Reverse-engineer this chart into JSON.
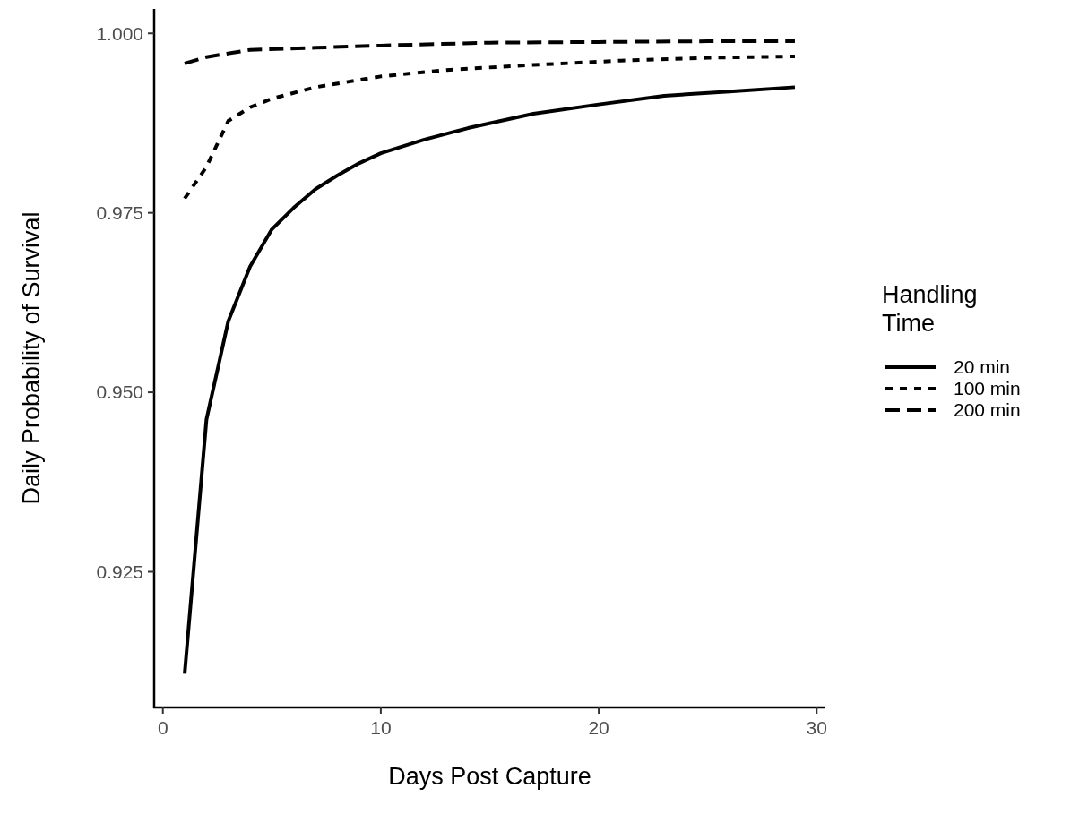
{
  "chart_data": {
    "type": "line",
    "xlabel": "Days Post Capture",
    "ylabel": "Daily Probability of Survival",
    "legend_title": "Handling Time",
    "xlim": [
      -0.4,
      30.4
    ],
    "ylim": [
      0.9061,
      1.0034
    ],
    "xticks": [
      0,
      10,
      20,
      30
    ],
    "yticks": [
      {
        "value": 0.925,
        "label": "0.925"
      },
      {
        "value": 0.95,
        "label": "0.950"
      },
      {
        "value": 0.975,
        "label": "0.975"
      },
      {
        "value": 1,
        "label": "1.000"
      }
    ],
    "grid": false,
    "legend": "right",
    "marker": "none",
    "series": [
      {
        "name": "20 min",
        "color": "#000000",
        "line_style": "solid",
        "x": [
          1,
          2,
          3,
          4,
          5,
          6,
          7,
          8,
          9,
          10,
          12,
          14,
          17,
          20,
          23,
          26,
          29
        ],
        "values": [
          0.9108,
          0.9462,
          0.9599,
          0.9675,
          0.9727,
          0.9757,
          0.9783,
          0.9802,
          0.9819,
          0.9833,
          0.9852,
          0.9868,
          0.9888,
          0.9901,
          0.9913,
          0.9919,
          0.9925
        ]
      },
      {
        "name": "100 min",
        "color": "#000000",
        "line_style": "dotted",
        "x": [
          1,
          2,
          3,
          4,
          5,
          7,
          10,
          13,
          17,
          21,
          25,
          29
        ],
        "values": [
          0.977,
          0.9814,
          0.9878,
          0.9897,
          0.9909,
          0.9925,
          0.994,
          0.9949,
          0.9956,
          0.9962,
          0.9966,
          0.9968
        ]
      },
      {
        "name": "200 min",
        "color": "#000000",
        "line_style": "dashed",
        "x": [
          1,
          2,
          4,
          7,
          10,
          15,
          20,
          25,
          29
        ],
        "values": [
          0.9958,
          0.9967,
          0.9977,
          0.998,
          0.9983,
          0.9987,
          0.9988,
          0.9989,
          0.9989
        ]
      }
    ]
  }
}
